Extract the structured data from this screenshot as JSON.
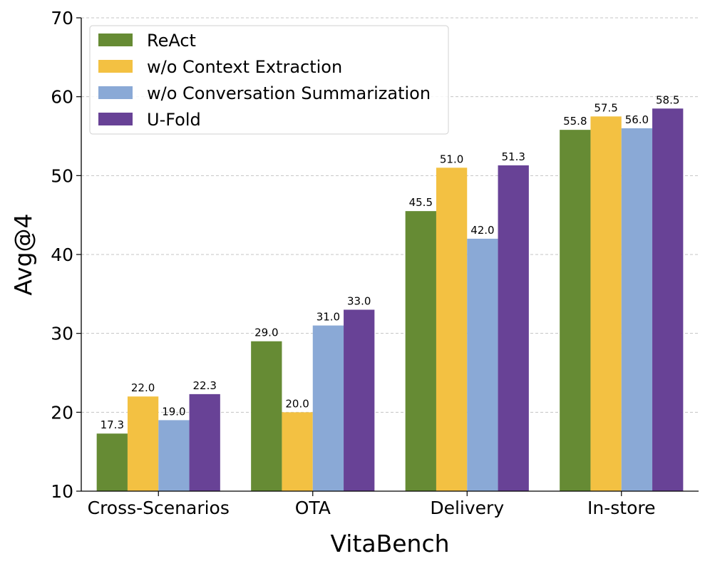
{
  "chart_data": {
    "type": "bar",
    "title": "",
    "xlabel": "VitaBench",
    "ylabel": "Avg@4",
    "categories": [
      "Cross-Scenarios",
      "OTA",
      "Delivery",
      "In-store"
    ],
    "ylim": [
      10,
      70
    ],
    "yticks": [
      10,
      20,
      30,
      40,
      50,
      60,
      70
    ],
    "grid": "horizontal dashed",
    "legend_position": "top-left",
    "series": [
      {
        "name": "ReAct",
        "color": "#668b34",
        "values": [
          17.3,
          29.0,
          45.5,
          55.8
        ],
        "labels": [
          "17.3",
          "29.0",
          "45.5",
          "55.8"
        ]
      },
      {
        "name": "w/o Context Extraction",
        "color": "#f3c142",
        "values": [
          22.0,
          20.0,
          51.0,
          57.5
        ],
        "labels": [
          "22.0",
          "20.0",
          "51.0",
          "57.5"
        ]
      },
      {
        "name": "w/o Conversation Summarization",
        "color": "#8aa9d6",
        "values": [
          19.0,
          31.0,
          42.0,
          56.0
        ],
        "labels": [
          "19.0",
          "31.0",
          "42.0",
          "56.0"
        ]
      },
      {
        "name": "U-Fold",
        "color": "#684296",
        "values": [
          22.3,
          33.0,
          51.3,
          58.5
        ],
        "labels": [
          "22.3",
          "33.0",
          "51.3",
          "58.5"
        ]
      }
    ]
  }
}
